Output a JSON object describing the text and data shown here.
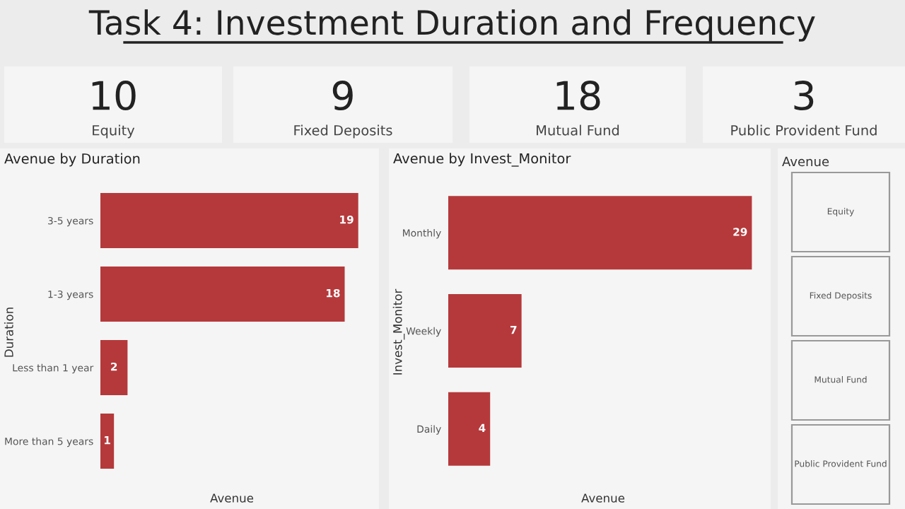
{
  "chart_data": [
    {
      "type": "other",
      "title": "Task 4: Investment Duration and Frequency",
      "categories": [
        "Equity",
        "Fixed Deposits",
        "Mutual Fund",
        "Public Provident Fund"
      ],
      "values": [
        10,
        9,
        18,
        3
      ],
      "data_labels": true
    },
    {
      "type": "bar",
      "orientation": "horizontal",
      "title": "Avenue by Duration",
      "xlabel": "Avenue",
      "ylabel": "Duration",
      "categories": [
        "3-5 years",
        "1-3 years",
        "Less than 1 year",
        "More than 5 years"
      ],
      "values": [
        19,
        18,
        2,
        1
      ],
      "color": "#b5393b",
      "data_labels": true,
      "tick_labels": "y"
    },
    {
      "type": "bar",
      "orientation": "horizontal",
      "title": "Avenue by Invest_Monitor",
      "xlabel": "Avenue",
      "ylabel": "Invest_Monitor",
      "categories": [
        "Monthly",
        "Weekly",
        "Daily"
      ],
      "values": [
        29,
        7,
        4
      ],
      "color": "#b5393b",
      "data_labels": true,
      "tick_labels": "y"
    },
    {
      "type": "other",
      "title": "Avenue",
      "categories": [
        "Equity",
        "Fixed Deposits",
        "Mutual Fund",
        "Public Provident Fund"
      ]
    }
  ]
}
